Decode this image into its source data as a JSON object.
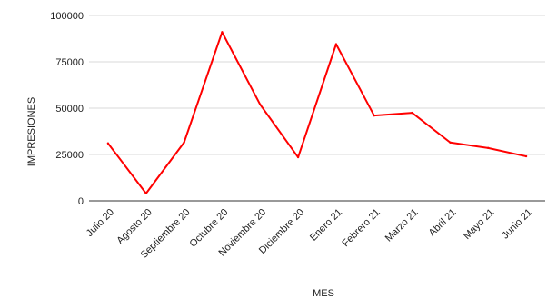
{
  "chart_data": {
    "type": "line",
    "title": "",
    "xlabel": "MES",
    "ylabel": "IMPRESIONES",
    "categories": [
      "Julio 20",
      "Agosto 20",
      "Septiembre 20",
      "Octubre 20",
      "Noviembre 20",
      "Diciembre 20",
      "Enero 21",
      "Febrero 21",
      "Marzo 21",
      "Abril 21",
      "Mayo 21",
      "Junio 21"
    ],
    "series": [
      {
        "values": [
          31000,
          4000,
          31500,
          91000,
          52000,
          23500,
          84500,
          46000,
          47500,
          31500,
          28500,
          24000
        ],
        "color": "#ff0000"
      }
    ],
    "ylim": [
      0,
      100000
    ],
    "yticks": [
      0,
      25000,
      50000,
      75000,
      100000
    ],
    "grid": true,
    "legend": "none"
  }
}
